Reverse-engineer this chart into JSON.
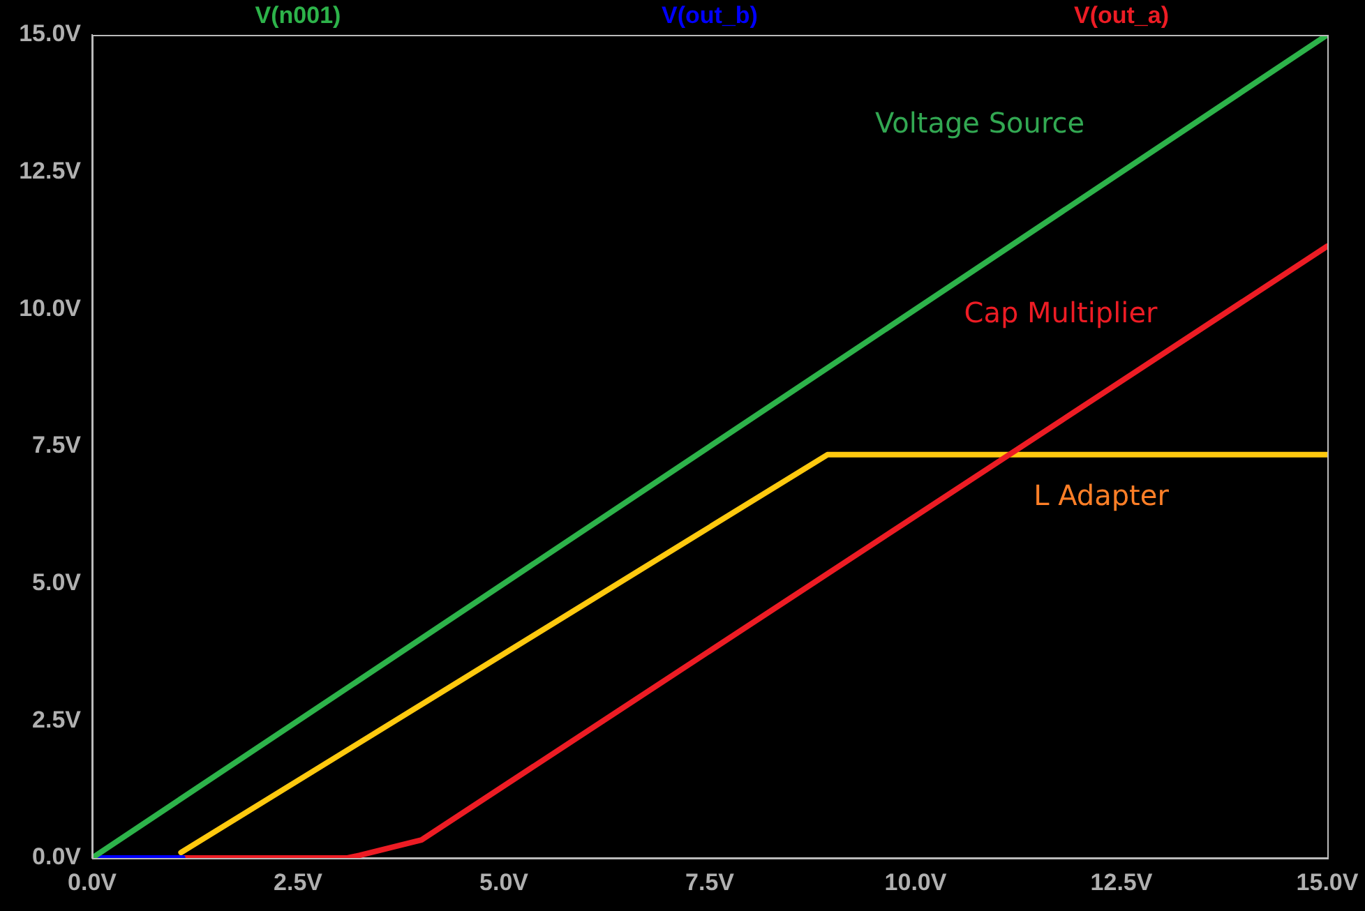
{
  "chart_data": {
    "type": "line",
    "legend": "top",
    "grid": false,
    "marker": "none",
    "line_style": "solid",
    "xlim": [
      0,
      15
    ],
    "ylim": [
      0,
      15
    ],
    "xticks": [
      {
        "value": 0,
        "label": "0.0V"
      },
      {
        "value": 2.5,
        "label": "2.5V"
      },
      {
        "value": 5,
        "label": "5.0V"
      },
      {
        "value": 7.5,
        "label": "7.5V"
      },
      {
        "value": 10,
        "label": "10.0V"
      },
      {
        "value": 12.5,
        "label": "12.5V"
      },
      {
        "value": 15,
        "label": "15.0V"
      }
    ],
    "yticks": [
      {
        "value": 0,
        "label": "0.0V"
      },
      {
        "value": 2.5,
        "label": "2.5V"
      },
      {
        "value": 5,
        "label": "5.0V"
      },
      {
        "value": 7.5,
        "label": "7.5V"
      },
      {
        "value": 10,
        "label": "10.0V"
      },
      {
        "value": 12.5,
        "label": "12.5V"
      },
      {
        "value": 15,
        "label": "15.0V"
      }
    ],
    "series": [
      {
        "name": "V(n001)",
        "color": "#2db34a",
        "x": [
          0,
          15
        ],
        "values": [
          0,
          15
        ]
      },
      {
        "name": "V(out_b)",
        "color": "#0000ff",
        "x": [
          0,
          1.1
        ],
        "values": [
          0,
          0
        ]
      },
      {
        "name": "V(out_a)",
        "color": "#ed1c24",
        "x": [
          0,
          3.1,
          3.25,
          4.0,
          15
        ],
        "values": [
          0,
          0,
          0.05,
          0.33,
          11.15
        ]
      },
      {
        "color": "#ffc90e",
        "x": [
          1.08,
          8.93,
          15
        ],
        "values": [
          0.1,
          7.35,
          7.35
        ]
      }
    ],
    "annotations": [
      "Voltage Source",
      "Cap Multiplier",
      "L Adapter"
    ]
  }
}
